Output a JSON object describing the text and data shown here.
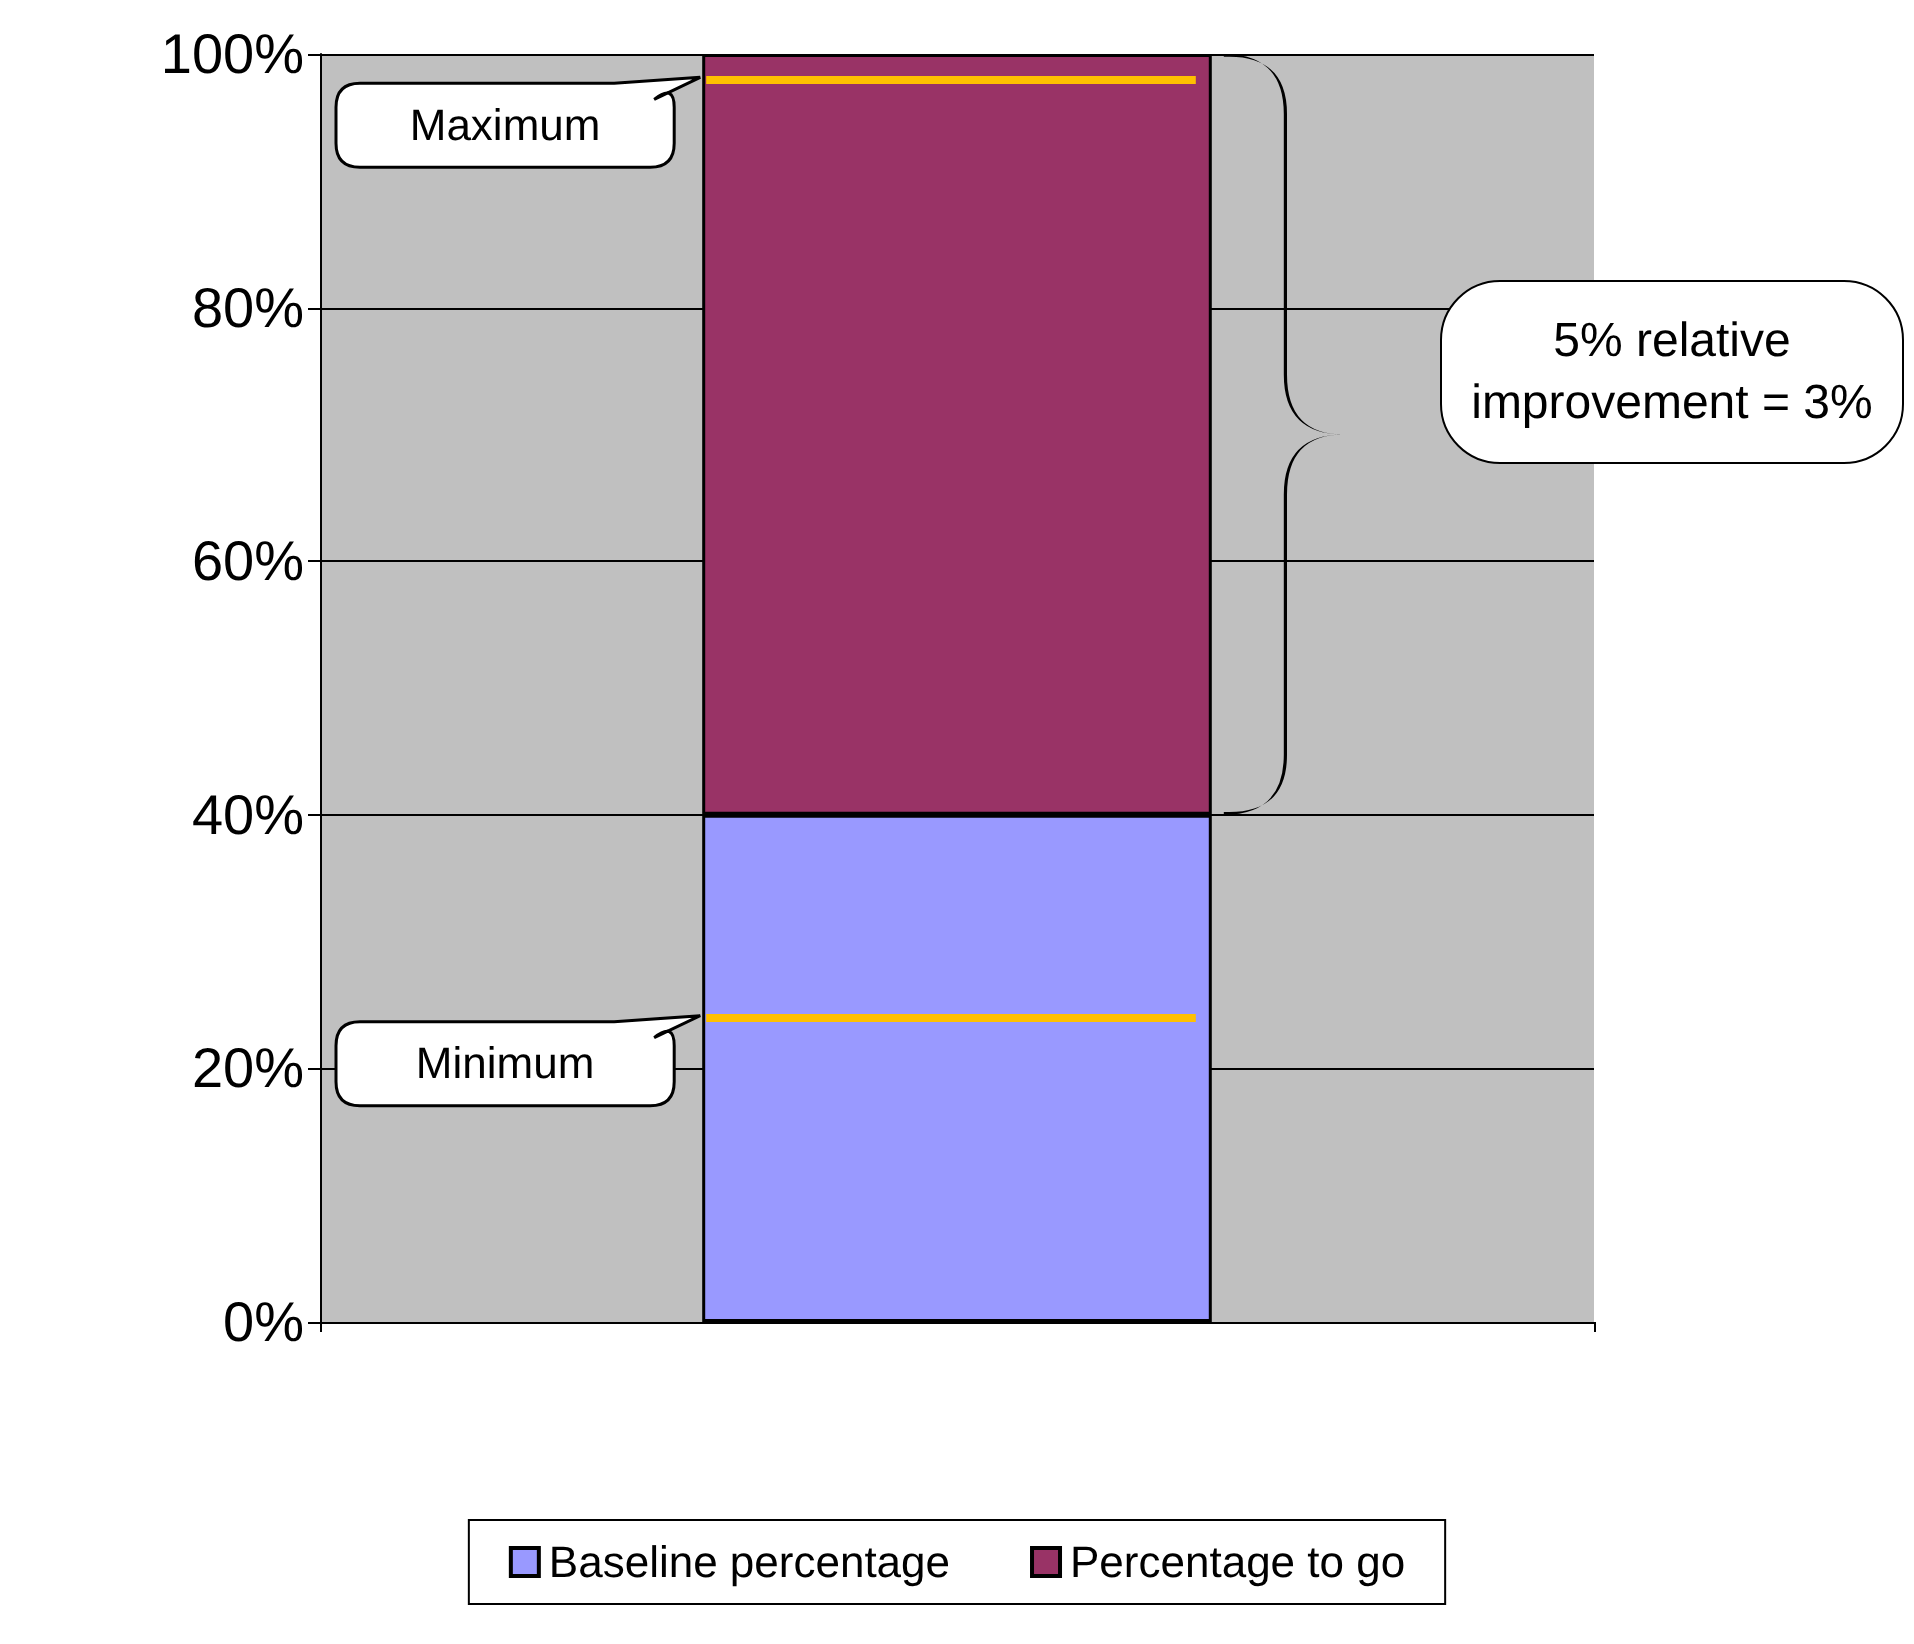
{
  "chart_data": {
    "type": "bar",
    "stacked": true,
    "categories": [
      null
    ],
    "series": [
      {
        "name": "Baseline percentage",
        "color": "#9999ff",
        "values": [
          40
        ]
      },
      {
        "name": "Percentage to go",
        "color": "#993366",
        "values": [
          60
        ]
      }
    ],
    "ylim": [
      0,
      100
    ],
    "yticks": [
      {
        "value": 0,
        "label": "0%"
      },
      {
        "value": 20,
        "label": "20%"
      },
      {
        "value": 40,
        "label": "40%"
      },
      {
        "value": 60,
        "label": "60%"
      },
      {
        "value": 80,
        "label": "80%"
      },
      {
        "value": 100,
        "label": "100%"
      }
    ],
    "grid": "y",
    "legend": "bottom",
    "ref_lines": [
      {
        "axis": "y",
        "value": 98,
        "label": "Maximum",
        "color": "#ffc000"
      },
      {
        "axis": "y",
        "value": 24,
        "label": "Minimum",
        "color": "#ffc000"
      }
    ],
    "annotations": [
      "5% relative improvement = 3%"
    ]
  }
}
